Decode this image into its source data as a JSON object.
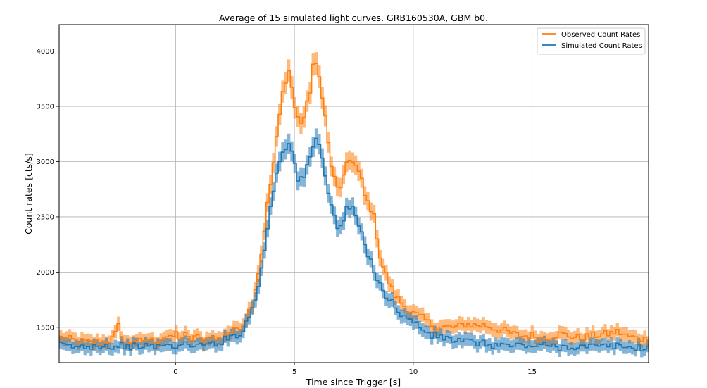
{
  "chart_data": {
    "type": "line",
    "title": "Average of 15 simulated light curves. GRB160530A, GBM b0.",
    "xlabel": "Time since Trigger [s]",
    "ylabel": "Count rates [cts/s]",
    "xlim": [
      -4.9,
      19.9
    ],
    "ylim": [
      1180,
      4240
    ],
    "xticks": [
      0,
      5,
      10,
      15
    ],
    "yticks": [
      1500,
      2000,
      2500,
      3000,
      3500,
      4000
    ],
    "xtick_labels": [
      "0",
      "5",
      "10",
      "15"
    ],
    "ytick_labels": [
      "1500",
      "2000",
      "2500",
      "3000",
      "3500",
      "4000"
    ],
    "grid": true,
    "legend_position": "top-right",
    "bin_width": 0.128,
    "series": [
      {
        "name": "Observed Count Rates",
        "color": "#ff7f0e",
        "band_color": "#ffbb85",
        "x": [
          -4.9,
          -4.2,
          -3.6,
          -3.0,
          -2.6,
          -2.4,
          -2.2,
          -2.0,
          -1.8,
          -1.6,
          -1.4,
          -1.2,
          -1.0,
          -0.8,
          -0.6,
          -0.4,
          -0.2,
          0.0,
          0.2,
          0.4,
          0.6,
          0.8,
          1.0,
          1.2,
          1.4,
          1.6,
          1.8,
          2.0,
          2.2,
          2.4,
          2.6,
          2.8,
          3.0,
          3.2,
          3.4,
          3.6,
          3.8,
          4.0,
          4.2,
          4.4,
          4.6,
          4.8,
          5.0,
          5.2,
          5.4,
          5.6,
          5.8,
          6.0,
          6.2,
          6.4,
          6.6,
          6.8,
          7.0,
          7.2,
          7.4,
          7.6,
          7.8,
          8.0,
          8.2,
          8.4,
          8.6,
          8.8,
          9.0,
          9.2,
          9.4,
          9.6,
          9.8,
          10.0,
          10.2,
          10.4,
          10.6,
          10.8,
          11.0,
          11.4,
          11.8,
          12.2,
          12.6,
          13.0,
          13.4,
          13.8,
          14.2,
          14.6,
          15.0,
          15.4,
          15.8,
          16.2,
          16.6,
          17.0,
          17.4,
          17.8,
          18.2,
          18.6,
          19.0,
          19.4,
          19.9
        ],
        "y": [
          1410,
          1380,
          1360,
          1370,
          1400,
          1510,
          1380,
          1350,
          1380,
          1390,
          1350,
          1400,
          1380,
          1370,
          1400,
          1420,
          1390,
          1450,
          1400,
          1430,
          1380,
          1420,
          1400,
          1370,
          1420,
          1400,
          1390,
          1420,
          1460,
          1450,
          1500,
          1520,
          1600,
          1700,
          1900,
          2150,
          2500,
          2800,
          3100,
          3450,
          3750,
          3830,
          3500,
          3350,
          3400,
          3550,
          3900,
          3800,
          3600,
          3200,
          2900,
          2750,
          2800,
          2950,
          3050,
          2950,
          2850,
          2650,
          2600,
          2450,
          2150,
          2000,
          1900,
          1800,
          1750,
          1700,
          1660,
          1630,
          1600,
          1580,
          1550,
          1520,
          1500,
          1500,
          1500,
          1530,
          1520,
          1520,
          1490,
          1470,
          1440,
          1420,
          1430,
          1400,
          1420,
          1440,
          1420,
          1400,
          1420,
          1430,
          1440,
          1460,
          1420,
          1400,
          1390
        ],
        "err": [
          60,
          60,
          60,
          60,
          60,
          65,
          60,
          60,
          60,
          60,
          60,
          60,
          60,
          60,
          60,
          60,
          60,
          62,
          60,
          62,
          60,
          60,
          60,
          60,
          60,
          60,
          60,
          62,
          62,
          62,
          64,
          64,
          66,
          68,
          72,
          76,
          82,
          88,
          92,
          98,
          102,
          104,
          98,
          95,
          96,
          98,
          104,
          102,
          99,
          93,
          88,
          86,
          87,
          89,
          90,
          89,
          87,
          84,
          83,
          80,
          75,
          72,
          70,
          68,
          67,
          66,
          66,
          65,
          64,
          64,
          63,
          63,
          62,
          62,
          62,
          63,
          62,
          62,
          62,
          62,
          61,
          61,
          61,
          60,
          61,
          61,
          61,
          60,
          61,
          61,
          61,
          62,
          61,
          60,
          60
        ]
      },
      {
        "name": "Simulated Count Rates",
        "color": "#1f77b4",
        "band_color": "#7eb0d5",
        "x": [
          -4.9,
          -4.2,
          -3.6,
          -3.0,
          -2.6,
          -2.4,
          -2.2,
          -2.0,
          -1.8,
          -1.6,
          -1.4,
          -1.2,
          -1.0,
          -0.8,
          -0.6,
          -0.4,
          -0.2,
          0.0,
          0.2,
          0.4,
          0.6,
          0.8,
          1.0,
          1.2,
          1.4,
          1.6,
          1.8,
          2.0,
          2.2,
          2.4,
          2.6,
          2.8,
          3.0,
          3.2,
          3.4,
          3.6,
          3.8,
          4.0,
          4.2,
          4.4,
          4.6,
          4.8,
          5.0,
          5.2,
          5.4,
          5.6,
          5.8,
          6.0,
          6.2,
          6.4,
          6.6,
          6.8,
          7.0,
          7.2,
          7.4,
          7.6,
          7.8,
          8.0,
          8.2,
          8.4,
          8.6,
          8.8,
          9.0,
          9.2,
          9.4,
          9.6,
          9.8,
          10.0,
          10.2,
          10.4,
          10.6,
          10.8,
          11.0,
          11.4,
          11.8,
          12.2,
          12.6,
          13.0,
          13.4,
          13.8,
          14.2,
          14.6,
          15.0,
          15.4,
          15.8,
          16.2,
          16.6,
          17.0,
          17.4,
          17.8,
          18.2,
          18.6,
          19.0,
          19.4,
          19.9
        ],
        "y": [
          1340,
          1320,
          1330,
          1340,
          1320,
          1330,
          1340,
          1320,
          1330,
          1320,
          1340,
          1330,
          1320,
          1330,
          1340,
          1330,
          1330,
          1340,
          1330,
          1340,
          1340,
          1350,
          1330,
          1340,
          1340,
          1360,
          1360,
          1380,
          1400,
          1420,
          1440,
          1460,
          1550,
          1650,
          1800,
          2000,
          2300,
          2600,
          2850,
          3050,
          3150,
          3150,
          3000,
          2800,
          2850,
          3000,
          3150,
          3200,
          3050,
          2750,
          2550,
          2400,
          2450,
          2550,
          2600,
          2500,
          2350,
          2200,
          2100,
          2000,
          1900,
          1800,
          1750,
          1700,
          1650,
          1600,
          1570,
          1550,
          1520,
          1480,
          1450,
          1420,
          1420,
          1400,
          1380,
          1370,
          1360,
          1350,
          1340,
          1340,
          1330,
          1340,
          1330,
          1340,
          1330,
          1320,
          1330,
          1320,
          1330,
          1320,
          1330,
          1330,
          1320,
          1320,
          1310
        ],
        "err": [
          58,
          57,
          58,
          58,
          57,
          58,
          58,
          57,
          58,
          57,
          58,
          58,
          57,
          58,
          58,
          58,
          58,
          58,
          58,
          58,
          58,
          58,
          58,
          58,
          58,
          59,
          59,
          60,
          60,
          61,
          62,
          62,
          64,
          66,
          69,
          72,
          78,
          82,
          86,
          89,
          90,
          90,
          88,
          85,
          86,
          88,
          90,
          91,
          89,
          84,
          81,
          79,
          80,
          81,
          82,
          80,
          78,
          76,
          74,
          72,
          70,
          68,
          67,
          66,
          65,
          64,
          64,
          63,
          62,
          62,
          61,
          61,
          61,
          60,
          60,
          60,
          60,
          59,
          59,
          59,
          59,
          59,
          59,
          59,
          59,
          58,
          58,
          58,
          58,
          58,
          58,
          58,
          58,
          58,
          57
        ]
      }
    ]
  }
}
